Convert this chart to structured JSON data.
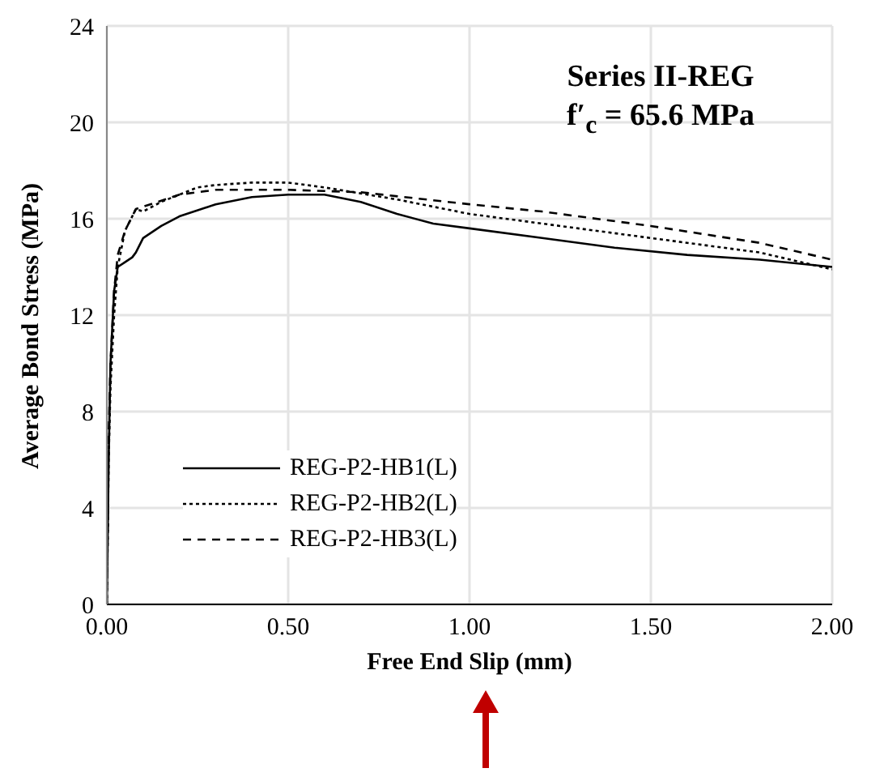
{
  "chart_data": {
    "type": "line",
    "xlabel": "Free End Slip (mm)",
    "ylabel": "Average Bond Stress (MPa)",
    "annotations": [
      "Series II-REG",
      "f′$_{c}$ = 65.6 MPa"
    ],
    "series": [
      {
        "name": "REG-P2-HB1(L)",
        "color": "#000000",
        "line_style": "solid",
        "x": [
          0,
          0.005,
          0.01,
          0.02,
          0.03,
          0.05,
          0.07,
          0.08,
          0.1,
          0.15,
          0.2,
          0.3,
          0.4,
          0.5,
          0.6,
          0.7,
          0.8,
          0.9,
          1.0,
          1.2,
          1.4,
          1.6,
          1.8,
          2.0
        ],
        "values": [
          0,
          6,
          10,
          13,
          14,
          14.2,
          14.4,
          14.6,
          15.2,
          15.7,
          16.1,
          16.6,
          16.9,
          17.0,
          17.0,
          16.7,
          16.2,
          15.8,
          15.6,
          15.2,
          14.8,
          14.5,
          14.3,
          14.0
        ]
      },
      {
        "name": "REG-P2-HB2(L)",
        "color": "#000000",
        "line_style": "dotted",
        "x": [
          0,
          0.005,
          0.01,
          0.02,
          0.03,
          0.05,
          0.08,
          0.1,
          0.15,
          0.2,
          0.25,
          0.3,
          0.4,
          0.5,
          0.6,
          0.8,
          1.0,
          1.2,
          1.5,
          1.8,
          2.0
        ],
        "values": [
          0,
          6,
          9,
          12,
          14,
          15.5,
          16.4,
          16.3,
          16.7,
          17.0,
          17.3,
          17.4,
          17.5,
          17.5,
          17.3,
          16.8,
          16.2,
          15.8,
          15.2,
          14.6,
          13.9
        ]
      },
      {
        "name": "REG-P2-HB3(L)",
        "color": "#000000",
        "line_style": "dashed",
        "x": [
          0,
          0.005,
          0.01,
          0.02,
          0.03,
          0.05,
          0.08,
          0.1,
          0.2,
          0.3,
          0.5,
          0.7,
          1.0,
          1.2,
          1.5,
          1.8,
          2.0
        ],
        "values": [
          0,
          7,
          10,
          13,
          14.5,
          15.5,
          16.4,
          16.5,
          17.0,
          17.2,
          17.2,
          17.1,
          16.6,
          16.3,
          15.7,
          15.0,
          14.3
        ]
      }
    ],
    "xlim": [
      0,
      2
    ],
    "xticks": [
      {
        "value": 0,
        "label": "0.00"
      },
      {
        "value": 0.5,
        "label": "0.50"
      },
      {
        "value": 1,
        "label": "1.00"
      },
      {
        "value": 1.5,
        "label": "1.50"
      },
      {
        "value": 2,
        "label": "2.00"
      }
    ],
    "ylim": [
      0,
      24
    ],
    "yticks": [
      0,
      4,
      8,
      12,
      16,
      20,
      24
    ],
    "grid": true,
    "legend": "bottom left",
    "marker": "none"
  }
}
